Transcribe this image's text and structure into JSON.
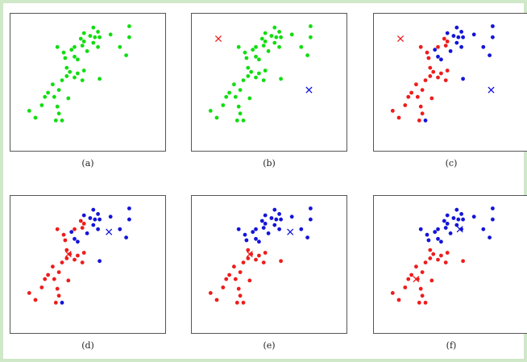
{
  "colors": {
    "green": "#11dd11",
    "red": "#ee1c1c",
    "blue": "#1414d8",
    "background": "#cfe8c8"
  },
  "panels": [
    {
      "caption": "(a)",
      "points": [
        [
          0.3,
          0.76,
          "g"
        ],
        [
          0.41,
          0.76,
          "g"
        ],
        [
          0.46,
          0.77,
          "g"
        ],
        [
          0.47,
          0.8,
          "g"
        ],
        [
          0.45,
          0.82,
          "g"
        ],
        [
          0.53,
          0.79,
          "g"
        ],
        [
          0.54,
          0.83,
          "g"
        ],
        [
          0.51,
          0.84,
          "g"
        ],
        [
          0.57,
          0.83,
          "g"
        ],
        [
          0.47,
          0.86,
          "g"
        ],
        [
          0.53,
          0.9,
          "g"
        ],
        [
          0.56,
          0.87,
          "g"
        ],
        [
          0.64,
          0.85,
          "g"
        ],
        [
          0.7,
          0.76,
          "g"
        ],
        [
          0.74,
          0.7,
          "g"
        ],
        [
          0.76,
          0.83,
          "g"
        ],
        [
          0.76,
          0.91,
          "g"
        ],
        [
          0.34,
          0.72,
          "g"
        ],
        [
          0.35,
          0.68,
          "g"
        ],
        [
          0.39,
          0.74,
          "g"
        ],
        [
          0.41,
          0.69,
          "g"
        ],
        [
          0.43,
          0.67,
          "g"
        ],
        [
          0.49,
          0.73,
          "g"
        ],
        [
          0.56,
          0.76,
          "g"
        ],
        [
          0.12,
          0.3,
          "g"
        ],
        [
          0.16,
          0.25,
          "g"
        ],
        [
          0.2,
          0.34,
          "g"
        ],
        [
          0.22,
          0.4,
          "g"
        ],
        [
          0.24,
          0.43,
          "g"
        ],
        [
          0.27,
          0.49,
          "g"
        ],
        [
          0.28,
          0.4,
          "g"
        ],
        [
          0.31,
          0.45,
          "g"
        ],
        [
          0.33,
          0.52,
          "g"
        ],
        [
          0.36,
          0.55,
          "g"
        ],
        [
          0.36,
          0.61,
          "g"
        ],
        [
          0.38,
          0.58,
          "g"
        ],
        [
          0.41,
          0.54,
          "g"
        ],
        [
          0.43,
          0.57,
          "g"
        ],
        [
          0.46,
          0.52,
          "g"
        ],
        [
          0.47,
          0.59,
          "g"
        ],
        [
          0.37,
          0.39,
          "g"
        ],
        [
          0.3,
          0.33,
          "g"
        ],
        [
          0.31,
          0.28,
          "g"
        ],
        [
          0.29,
          0.23,
          "g"
        ],
        [
          0.33,
          0.23,
          "g"
        ],
        [
          0.57,
          0.53,
          "g"
        ]
      ],
      "markers": []
    },
    {
      "caption": "(b)",
      "points": [
        [
          0.3,
          0.76,
          "g"
        ],
        [
          0.41,
          0.76,
          "g"
        ],
        [
          0.46,
          0.77,
          "g"
        ],
        [
          0.47,
          0.8,
          "g"
        ],
        [
          0.45,
          0.82,
          "g"
        ],
        [
          0.53,
          0.79,
          "g"
        ],
        [
          0.54,
          0.83,
          "g"
        ],
        [
          0.51,
          0.84,
          "g"
        ],
        [
          0.57,
          0.83,
          "g"
        ],
        [
          0.47,
          0.86,
          "g"
        ],
        [
          0.53,
          0.9,
          "g"
        ],
        [
          0.56,
          0.87,
          "g"
        ],
        [
          0.64,
          0.85,
          "g"
        ],
        [
          0.7,
          0.76,
          "g"
        ],
        [
          0.74,
          0.7,
          "g"
        ],
        [
          0.76,
          0.83,
          "g"
        ],
        [
          0.76,
          0.91,
          "g"
        ],
        [
          0.34,
          0.72,
          "g"
        ],
        [
          0.35,
          0.68,
          "g"
        ],
        [
          0.39,
          0.74,
          "g"
        ],
        [
          0.41,
          0.69,
          "g"
        ],
        [
          0.43,
          0.67,
          "g"
        ],
        [
          0.49,
          0.73,
          "g"
        ],
        [
          0.56,
          0.76,
          "g"
        ],
        [
          0.12,
          0.3,
          "g"
        ],
        [
          0.16,
          0.25,
          "g"
        ],
        [
          0.2,
          0.34,
          "g"
        ],
        [
          0.22,
          0.4,
          "g"
        ],
        [
          0.24,
          0.43,
          "g"
        ],
        [
          0.27,
          0.49,
          "g"
        ],
        [
          0.28,
          0.4,
          "g"
        ],
        [
          0.31,
          0.45,
          "g"
        ],
        [
          0.33,
          0.52,
          "g"
        ],
        [
          0.36,
          0.55,
          "g"
        ],
        [
          0.36,
          0.61,
          "g"
        ],
        [
          0.38,
          0.58,
          "g"
        ],
        [
          0.41,
          0.54,
          "g"
        ],
        [
          0.43,
          0.57,
          "g"
        ],
        [
          0.46,
          0.52,
          "g"
        ],
        [
          0.47,
          0.59,
          "g"
        ],
        [
          0.37,
          0.39,
          "g"
        ],
        [
          0.3,
          0.33,
          "g"
        ],
        [
          0.31,
          0.28,
          "g"
        ],
        [
          0.29,
          0.23,
          "g"
        ],
        [
          0.33,
          0.23,
          "g"
        ],
        [
          0.57,
          0.53,
          "g"
        ]
      ],
      "markers": [
        [
          0.17,
          0.82,
          "r"
        ],
        [
          0.75,
          0.45,
          "b"
        ]
      ]
    },
    {
      "caption": "(c)",
      "points": [
        [
          0.3,
          0.76,
          "r"
        ],
        [
          0.41,
          0.76,
          "r"
        ],
        [
          0.46,
          0.77,
          "r"
        ],
        [
          0.47,
          0.8,
          "r"
        ],
        [
          0.45,
          0.82,
          "r"
        ],
        [
          0.53,
          0.79,
          "b"
        ],
        [
          0.54,
          0.83,
          "b"
        ],
        [
          0.51,
          0.84,
          "b"
        ],
        [
          0.57,
          0.83,
          "b"
        ],
        [
          0.47,
          0.86,
          "b"
        ],
        [
          0.53,
          0.9,
          "b"
        ],
        [
          0.56,
          0.87,
          "b"
        ],
        [
          0.64,
          0.85,
          "b"
        ],
        [
          0.7,
          0.76,
          "b"
        ],
        [
          0.74,
          0.7,
          "b"
        ],
        [
          0.76,
          0.83,
          "b"
        ],
        [
          0.76,
          0.91,
          "b"
        ],
        [
          0.34,
          0.72,
          "r"
        ],
        [
          0.35,
          0.68,
          "r"
        ],
        [
          0.39,
          0.74,
          "b"
        ],
        [
          0.41,
          0.69,
          "b"
        ],
        [
          0.43,
          0.67,
          "b"
        ],
        [
          0.49,
          0.73,
          "b"
        ],
        [
          0.56,
          0.76,
          "b"
        ],
        [
          0.12,
          0.3,
          "r"
        ],
        [
          0.16,
          0.25,
          "r"
        ],
        [
          0.2,
          0.34,
          "r"
        ],
        [
          0.22,
          0.4,
          "r"
        ],
        [
          0.24,
          0.43,
          "r"
        ],
        [
          0.27,
          0.49,
          "r"
        ],
        [
          0.28,
          0.4,
          "r"
        ],
        [
          0.31,
          0.45,
          "r"
        ],
        [
          0.33,
          0.52,
          "r"
        ],
        [
          0.36,
          0.55,
          "r"
        ],
        [
          0.36,
          0.61,
          "r"
        ],
        [
          0.38,
          0.58,
          "r"
        ],
        [
          0.41,
          0.54,
          "r"
        ],
        [
          0.43,
          0.57,
          "r"
        ],
        [
          0.46,
          0.52,
          "r"
        ],
        [
          0.47,
          0.59,
          "r"
        ],
        [
          0.37,
          0.39,
          "r"
        ],
        [
          0.3,
          0.33,
          "r"
        ],
        [
          0.31,
          0.28,
          "r"
        ],
        [
          0.29,
          0.23,
          "r"
        ],
        [
          0.33,
          0.23,
          "b"
        ],
        [
          0.57,
          0.53,
          "b"
        ]
      ],
      "markers": [
        [
          0.17,
          0.82,
          "r"
        ],
        [
          0.75,
          0.45,
          "b"
        ]
      ]
    },
    {
      "caption": "(d)",
      "points": [
        [
          0.3,
          0.76,
          "r"
        ],
        [
          0.41,
          0.76,
          "r"
        ],
        [
          0.46,
          0.77,
          "r"
        ],
        [
          0.47,
          0.8,
          "r"
        ],
        [
          0.45,
          0.82,
          "r"
        ],
        [
          0.53,
          0.79,
          "b"
        ],
        [
          0.54,
          0.83,
          "b"
        ],
        [
          0.51,
          0.84,
          "b"
        ],
        [
          0.57,
          0.83,
          "b"
        ],
        [
          0.47,
          0.86,
          "b"
        ],
        [
          0.53,
          0.9,
          "b"
        ],
        [
          0.56,
          0.87,
          "b"
        ],
        [
          0.64,
          0.85,
          "b"
        ],
        [
          0.7,
          0.76,
          "b"
        ],
        [
          0.74,
          0.7,
          "b"
        ],
        [
          0.76,
          0.83,
          "b"
        ],
        [
          0.76,
          0.91,
          "b"
        ],
        [
          0.34,
          0.72,
          "r"
        ],
        [
          0.35,
          0.68,
          "r"
        ],
        [
          0.39,
          0.74,
          "b"
        ],
        [
          0.41,
          0.69,
          "b"
        ],
        [
          0.43,
          0.67,
          "b"
        ],
        [
          0.49,
          0.73,
          "b"
        ],
        [
          0.56,
          0.76,
          "b"
        ],
        [
          0.12,
          0.3,
          "r"
        ],
        [
          0.16,
          0.25,
          "r"
        ],
        [
          0.2,
          0.34,
          "r"
        ],
        [
          0.22,
          0.4,
          "r"
        ],
        [
          0.24,
          0.43,
          "r"
        ],
        [
          0.27,
          0.49,
          "r"
        ],
        [
          0.28,
          0.4,
          "r"
        ],
        [
          0.31,
          0.45,
          "r"
        ],
        [
          0.33,
          0.52,
          "r"
        ],
        [
          0.36,
          0.55,
          "r"
        ],
        [
          0.36,
          0.61,
          "r"
        ],
        [
          0.38,
          0.58,
          "r"
        ],
        [
          0.41,
          0.54,
          "r"
        ],
        [
          0.43,
          0.57,
          "r"
        ],
        [
          0.46,
          0.52,
          "r"
        ],
        [
          0.47,
          0.59,
          "r"
        ],
        [
          0.37,
          0.39,
          "r"
        ],
        [
          0.3,
          0.33,
          "r"
        ],
        [
          0.31,
          0.28,
          "r"
        ],
        [
          0.29,
          0.23,
          "r"
        ],
        [
          0.33,
          0.23,
          "b"
        ],
        [
          0.57,
          0.53,
          "b"
        ]
      ],
      "markers": [
        [
          0.37,
          0.58,
          "r"
        ],
        [
          0.63,
          0.74,
          "b"
        ]
      ]
    },
    {
      "caption": "(e)",
      "points": [
        [
          0.3,
          0.76,
          "b"
        ],
        [
          0.41,
          0.76,
          "b"
        ],
        [
          0.46,
          0.77,
          "b"
        ],
        [
          0.47,
          0.8,
          "b"
        ],
        [
          0.45,
          0.82,
          "b"
        ],
        [
          0.53,
          0.79,
          "b"
        ],
        [
          0.54,
          0.83,
          "b"
        ],
        [
          0.51,
          0.84,
          "b"
        ],
        [
          0.57,
          0.83,
          "b"
        ],
        [
          0.47,
          0.86,
          "b"
        ],
        [
          0.53,
          0.9,
          "b"
        ],
        [
          0.56,
          0.87,
          "b"
        ],
        [
          0.64,
          0.85,
          "b"
        ],
        [
          0.7,
          0.76,
          "b"
        ],
        [
          0.74,
          0.7,
          "b"
        ],
        [
          0.76,
          0.83,
          "b"
        ],
        [
          0.76,
          0.91,
          "b"
        ],
        [
          0.34,
          0.72,
          "b"
        ],
        [
          0.35,
          0.68,
          "b"
        ],
        [
          0.39,
          0.74,
          "b"
        ],
        [
          0.41,
          0.69,
          "b"
        ],
        [
          0.43,
          0.67,
          "b"
        ],
        [
          0.49,
          0.73,
          "b"
        ],
        [
          0.56,
          0.76,
          "b"
        ],
        [
          0.12,
          0.3,
          "r"
        ],
        [
          0.16,
          0.25,
          "r"
        ],
        [
          0.2,
          0.34,
          "r"
        ],
        [
          0.22,
          0.4,
          "r"
        ],
        [
          0.24,
          0.43,
          "r"
        ],
        [
          0.27,
          0.49,
          "r"
        ],
        [
          0.28,
          0.4,
          "r"
        ],
        [
          0.31,
          0.45,
          "r"
        ],
        [
          0.33,
          0.52,
          "r"
        ],
        [
          0.36,
          0.55,
          "r"
        ],
        [
          0.36,
          0.61,
          "r"
        ],
        [
          0.38,
          0.58,
          "r"
        ],
        [
          0.41,
          0.54,
          "r"
        ],
        [
          0.43,
          0.57,
          "r"
        ],
        [
          0.46,
          0.52,
          "r"
        ],
        [
          0.47,
          0.59,
          "r"
        ],
        [
          0.37,
          0.39,
          "r"
        ],
        [
          0.3,
          0.33,
          "r"
        ],
        [
          0.31,
          0.28,
          "r"
        ],
        [
          0.29,
          0.23,
          "r"
        ],
        [
          0.33,
          0.23,
          "r"
        ],
        [
          0.57,
          0.53,
          "r"
        ]
      ],
      "markers": [
        [
          0.37,
          0.58,
          "r"
        ],
        [
          0.63,
          0.74,
          "b"
        ]
      ]
    },
    {
      "caption": "(f)",
      "points": [
        [
          0.3,
          0.76,
          "b"
        ],
        [
          0.41,
          0.76,
          "b"
        ],
        [
          0.46,
          0.77,
          "b"
        ],
        [
          0.47,
          0.8,
          "b"
        ],
        [
          0.45,
          0.82,
          "b"
        ],
        [
          0.53,
          0.79,
          "b"
        ],
        [
          0.54,
          0.83,
          "b"
        ],
        [
          0.51,
          0.84,
          "b"
        ],
        [
          0.57,
          0.83,
          "b"
        ],
        [
          0.47,
          0.86,
          "b"
        ],
        [
          0.53,
          0.9,
          "b"
        ],
        [
          0.56,
          0.87,
          "b"
        ],
        [
          0.64,
          0.85,
          "b"
        ],
        [
          0.7,
          0.76,
          "b"
        ],
        [
          0.74,
          0.7,
          "b"
        ],
        [
          0.76,
          0.83,
          "b"
        ],
        [
          0.76,
          0.91,
          "b"
        ],
        [
          0.34,
          0.72,
          "b"
        ],
        [
          0.35,
          0.68,
          "b"
        ],
        [
          0.39,
          0.74,
          "b"
        ],
        [
          0.41,
          0.69,
          "b"
        ],
        [
          0.43,
          0.67,
          "b"
        ],
        [
          0.49,
          0.73,
          "b"
        ],
        [
          0.56,
          0.76,
          "b"
        ],
        [
          0.12,
          0.3,
          "r"
        ],
        [
          0.16,
          0.25,
          "r"
        ],
        [
          0.2,
          0.34,
          "r"
        ],
        [
          0.22,
          0.4,
          "r"
        ],
        [
          0.24,
          0.43,
          "r"
        ],
        [
          0.27,
          0.49,
          "r"
        ],
        [
          0.28,
          0.4,
          "r"
        ],
        [
          0.31,
          0.45,
          "r"
        ],
        [
          0.33,
          0.52,
          "r"
        ],
        [
          0.36,
          0.55,
          "r"
        ],
        [
          0.36,
          0.61,
          "r"
        ],
        [
          0.38,
          0.58,
          "r"
        ],
        [
          0.41,
          0.54,
          "r"
        ],
        [
          0.43,
          0.57,
          "r"
        ],
        [
          0.46,
          0.52,
          "r"
        ],
        [
          0.47,
          0.59,
          "r"
        ],
        [
          0.37,
          0.39,
          "r"
        ],
        [
          0.3,
          0.33,
          "r"
        ],
        [
          0.31,
          0.28,
          "r"
        ],
        [
          0.29,
          0.23,
          "r"
        ],
        [
          0.33,
          0.23,
          "r"
        ],
        [
          0.57,
          0.53,
          "r"
        ]
      ],
      "markers": [
        [
          0.27,
          0.4,
          "r"
        ],
        [
          0.55,
          0.76,
          "b"
        ]
      ]
    }
  ]
}
